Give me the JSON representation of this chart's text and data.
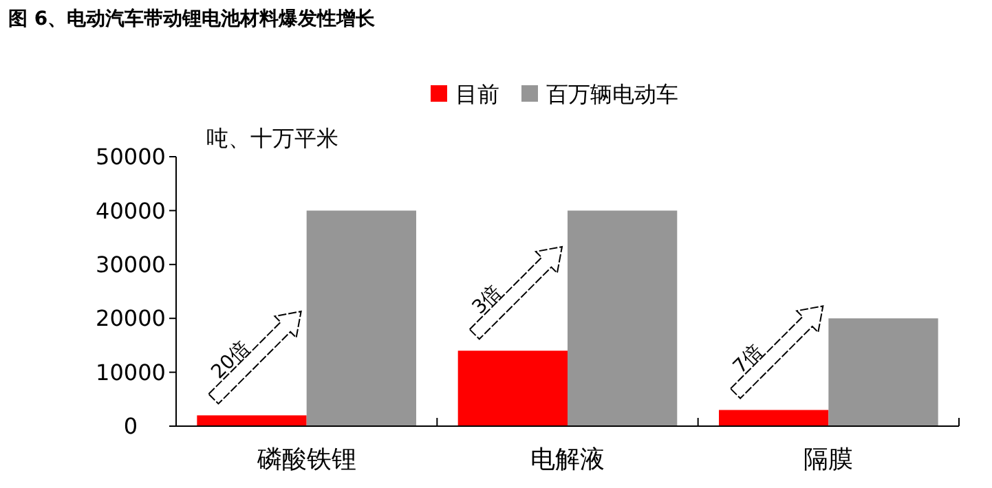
{
  "chart_data": {
    "type": "bar",
    "title": "图 6、电动汽车带动锂电池材料爆发性增长",
    "ylabel": "吨、十万平米",
    "categories": [
      "磷酸铁锂",
      "电解液",
      "隔膜"
    ],
    "series": [
      {
        "name": "目前",
        "color": "#ff0000",
        "values": [
          2000,
          14000,
          3000
        ]
      },
      {
        "name": "百万辆电动车",
        "color": "#969696",
        "values": [
          40000,
          40000,
          20000
        ]
      }
    ],
    "ylim": [
      0,
      50000
    ],
    "yticks": [
      0,
      10000,
      20000,
      30000,
      40000,
      50000
    ],
    "grid": false,
    "legend": "top",
    "annotations": [
      "20倍",
      "3倍",
      "7倍"
    ]
  }
}
